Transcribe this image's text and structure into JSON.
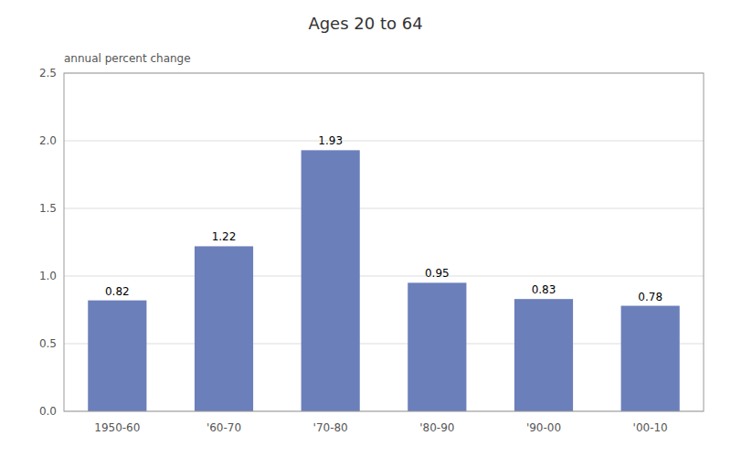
{
  "chart_data": {
    "type": "bar",
    "title": "Ages 20 to 64",
    "ylabel": "annual percent change",
    "categories": [
      "1950-60",
      "'60-70",
      "'70-80",
      "'80-90",
      "'90-00",
      "'00-10"
    ],
    "values": [
      0.82,
      1.22,
      1.93,
      0.95,
      0.83,
      0.78
    ],
    "color": "#6b7fba",
    "ylim": [
      0.0,
      2.5
    ],
    "yticks": [
      {
        "value": 0.0,
        "label": "0.0"
      },
      0.5,
      {
        "value": 1.0,
        "label": "1.0"
      },
      1.5,
      {
        "value": 2.0,
        "label": "2.0"
      },
      2.5
    ],
    "grid": true,
    "data_labels": true
  }
}
